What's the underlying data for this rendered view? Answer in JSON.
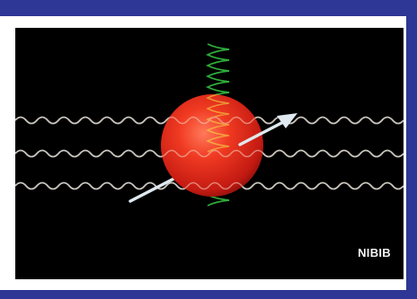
{
  "colors": {
    "frame": "#2e3795",
    "background": "#000000",
    "sphere": "#e0251a",
    "wave_horizontal": "#c9c4bd",
    "wave_vertical": "#2fae3a",
    "arrow": "#dfe9ef"
  },
  "illustration": {
    "credit_text": "NIBIB"
  }
}
